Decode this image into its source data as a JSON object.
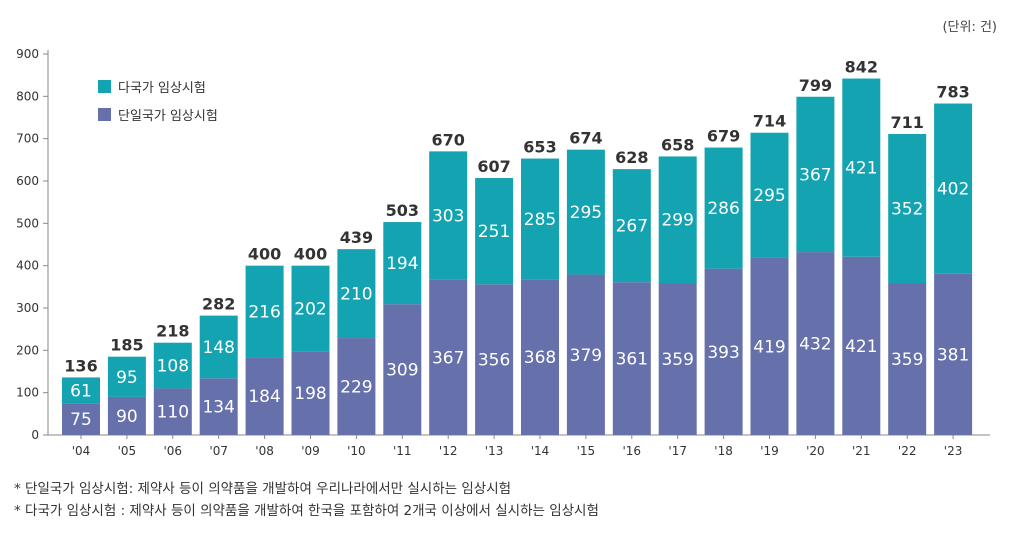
{
  "unit_label": "(단위: 건)",
  "notes": [
    "* 단일국가 임상시험: 제약사 등이 의약품을 개발하여 우리나라에서만 실시하는 임상시험",
    "* 다국가 임상시험 : 제약사 등이 의약품을 개발하여 한국을 포함하여 2개국 이상에서 실시하는 임상시험"
  ],
  "chart_data": {
    "type": "bar",
    "stacked": true,
    "categories": [
      "'04",
      "'05",
      "'06",
      "'07",
      "'08",
      "'09",
      "'10",
      "'11",
      "'12",
      "'13",
      "'14",
      "'15",
      "'16",
      "'17",
      "'18",
      "'19",
      "'20",
      "'21",
      "'22",
      "'23"
    ],
    "series": [
      {
        "name": "단일국가 임상시험",
        "color": "#6670aa",
        "values": [
          75,
          90,
          110,
          134,
          184,
          198,
          229,
          309,
          367,
          356,
          368,
          379,
          361,
          359,
          393,
          419,
          432,
          421,
          359,
          381
        ]
      },
      {
        "name": "다국가 임상시험",
        "color": "#14a3b0",
        "values": [
          61,
          95,
          108,
          148,
          216,
          202,
          210,
          194,
          303,
          251,
          285,
          295,
          267,
          299,
          286,
          295,
          367,
          421,
          352,
          402
        ]
      }
    ],
    "totals": [
      136,
      185,
      218,
      282,
      400,
      400,
      439,
      503,
      670,
      607,
      653,
      674,
      628,
      658,
      679,
      714,
      799,
      842,
      711,
      783
    ],
    "ylim": [
      0,
      900
    ],
    "yticks": [
      0,
      100,
      200,
      300,
      400,
      500,
      600,
      700,
      800,
      900
    ],
    "legend_position": "top-left",
    "grid": false
  }
}
